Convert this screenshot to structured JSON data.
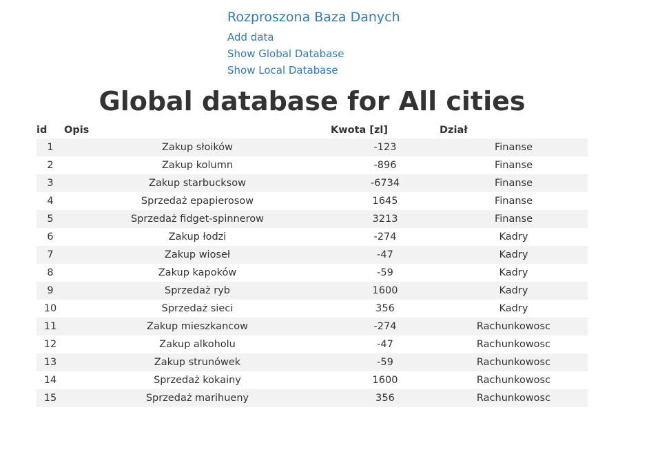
{
  "nav": {
    "brand": "Rozproszona Baza Danych",
    "links": [
      "Add data",
      "Show Global Database",
      "Show Local Database"
    ]
  },
  "title": "Global database for All cities",
  "table": {
    "headers": [
      "id",
      "Opis",
      "Kwota [zl]",
      "Dział"
    ],
    "rows": [
      [
        "1",
        "Zakup słoików",
        "-123",
        "Finanse"
      ],
      [
        "2",
        "Zakup kolumn",
        "-896",
        "Finanse"
      ],
      [
        "3",
        "Zakup starbucksow",
        "-6734",
        "Finanse"
      ],
      [
        "4",
        "Sprzedaż epapierosow",
        "1645",
        "Finanse"
      ],
      [
        "5",
        "Sprzedaż fidget-spinnerow",
        "3213",
        "Finanse"
      ],
      [
        "6",
        "Zakup łodzi",
        "-274",
        "Kadry"
      ],
      [
        "7",
        "Zakup wioseł",
        "-47",
        "Kadry"
      ],
      [
        "8",
        "Zakup kapoków",
        "-59",
        "Kadry"
      ],
      [
        "9",
        "Sprzedaż ryb",
        "1600",
        "Kadry"
      ],
      [
        "10",
        "Sprzedaż sieci",
        "356",
        "Kadry"
      ],
      [
        "11",
        "Zakup mieszkancow",
        "-274",
        "Rachunkowosc"
      ],
      [
        "12",
        "Zakup alkoholu",
        "-47",
        "Rachunkowosc"
      ],
      [
        "13",
        "Zakup strunówek",
        "-59",
        "Rachunkowosc"
      ],
      [
        "14",
        "Sprzedaż kokainy",
        "1600",
        "Rachunkowosc"
      ],
      [
        "15",
        "Sprzedaż marihueny",
        "356",
        "Rachunkowosc"
      ]
    ]
  }
}
